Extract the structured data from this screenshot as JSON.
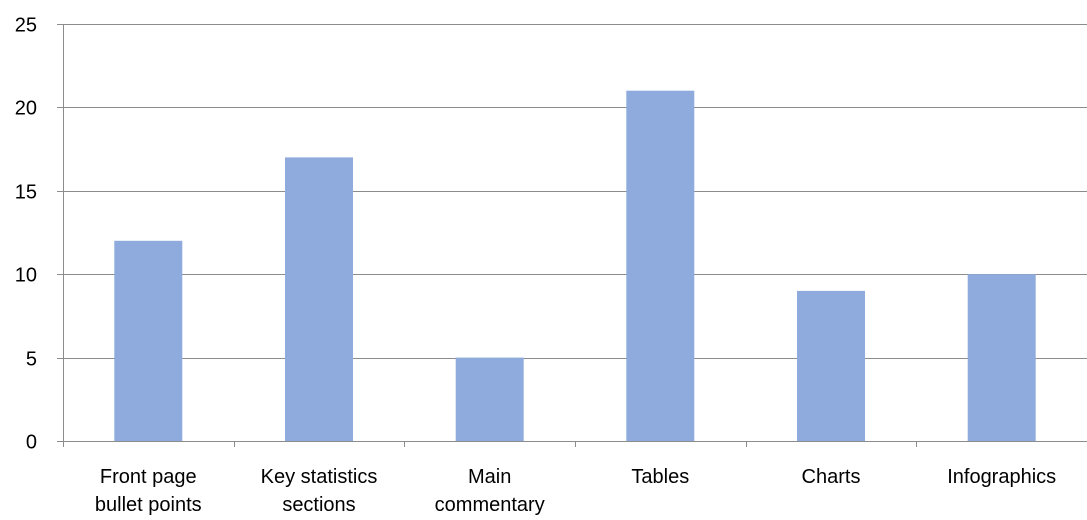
{
  "chart_data": {
    "type": "bar",
    "title": "",
    "xlabel": "",
    "ylabel": "",
    "categories": [
      [
        "Front page",
        "bullet points"
      ],
      [
        "Key statistics",
        "sections"
      ],
      [
        "Main",
        "commentary"
      ],
      [
        "Tables"
      ],
      [
        "Charts"
      ],
      [
        "Infographics"
      ]
    ],
    "values": [
      12,
      17,
      5,
      21,
      9,
      10
    ],
    "ylim": [
      0,
      25
    ],
    "yticks": [
      "0",
      "5",
      "10",
      "15",
      "20",
      "25"
    ],
    "grid": true,
    "legend": "none",
    "bar_color": "#8faadc",
    "axis_color": "#8c8c8c",
    "text_color": "#000000"
  }
}
